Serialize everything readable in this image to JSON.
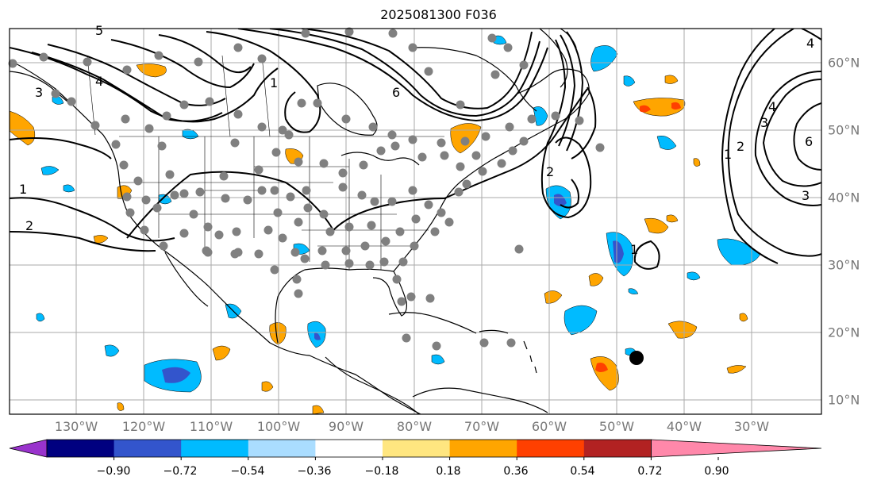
{
  "title": "2025081300 F036",
  "map": {
    "lon_labels": [
      "130°W",
      "120°W",
      "110°W",
      "100°W",
      "90°W",
      "80°W",
      "70°W",
      "60°W",
      "50°W",
      "40°W",
      "30°W"
    ],
    "lat_labels": [
      "60°N",
      "50°N",
      "40°N",
      "30°N",
      "20°N",
      "10°N"
    ],
    "contour_labels": [
      "1",
      "2",
      "3",
      "4",
      "5",
      "6"
    ]
  },
  "colorbar": {
    "ticks": [
      "−0.90",
      "−0.72",
      "−0.54",
      "−0.36",
      "−0.18",
      "0.18",
      "0.36",
      "0.54",
      "0.72",
      "0.90"
    ],
    "colors": [
      "#9933cc",
      "#000080",
      "#3355cc",
      "#00bbff",
      "#aaddff",
      "#ffffff",
      "#ffe680",
      "#ffa500",
      "#ff4000",
      "#b22222",
      "#ff88aa"
    ]
  },
  "colors": {
    "grid": "#aaaaaa",
    "coast": "#000000",
    "station_dot": "#808080",
    "contour": "#000000"
  }
}
